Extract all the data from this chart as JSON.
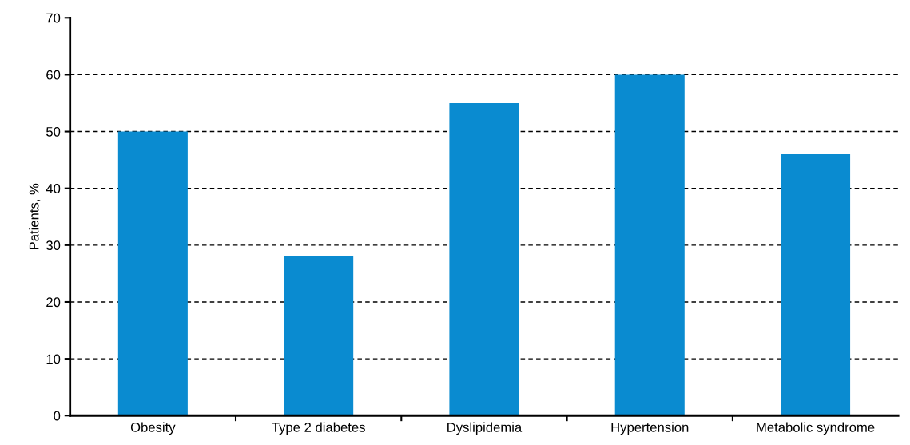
{
  "chart_data": {
    "type": "bar",
    "ylabel": "Patients, %",
    "categories": [
      "Obesity",
      "Type 2 diabetes",
      "Dyslipidemia",
      "Hypertension",
      "Metabolic syndrome"
    ],
    "values": [
      50,
      28,
      55,
      60,
      46
    ],
    "color": "#0a8bd0",
    "ylim": [
      0,
      70
    ],
    "yticks": [
      0,
      10,
      20,
      30,
      40,
      50,
      60,
      70
    ],
    "grid": "y",
    "line_style": "dashed"
  }
}
